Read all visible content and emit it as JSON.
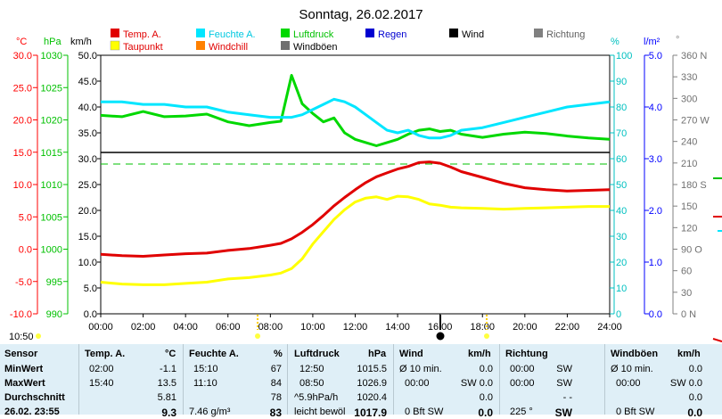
{
  "title": "Sonntag, 26.02.2017",
  "time_marker": "10:50",
  "legend": [
    {
      "label": "Temp. A.",
      "color": "#e00000"
    },
    {
      "label": "Feuchte A.",
      "color": "#00e6ff"
    },
    {
      "label": "Luftdruck",
      "color": "#00d800"
    },
    {
      "label": "Regen",
      "color": "#0000d0"
    },
    {
      "label": "Wind",
      "color": "#000000"
    },
    {
      "label": "Richtung",
      "color": "#808080"
    },
    {
      "label": "Taupunkt",
      "color": "#ffff00"
    },
    {
      "label": "Windchill",
      "color": "#ff8000"
    },
    {
      "label": "Windböen",
      "color": "#707070"
    }
  ],
  "axis_units": {
    "temp": "°C",
    "pressure": "hPa",
    "wind": "km/h",
    "humidity": "%",
    "rain": "l/m²",
    "direction": "°"
  },
  "colors": {
    "temp": "#e00000",
    "dew": "#ffff00",
    "humidity": "#00e6ff",
    "pressure": "#00d800",
    "axis_temp": "#ff0000",
    "axis_pressure": "#00c000",
    "axis_humidity": "#00c0c0",
    "axis_rain": "#0000ff"
  },
  "chart_data": {
    "type": "line",
    "title": "Sonntag, 26.02.2017",
    "x_ticks": [
      "00:00",
      "02:00",
      "04:00",
      "06:00",
      "08:00",
      "10:00",
      "12:00",
      "14:00",
      "16:00",
      "18:00",
      "20:00",
      "22:00",
      "24:00"
    ],
    "axes": {
      "temp": {
        "label": "°C",
        "min": -10,
        "max": 30,
        "ticks": [
          "30.0",
          "25.0",
          "20.0",
          "15.0",
          "10.0",
          "5.0",
          "0.0",
          "-5.0",
          "-10.0"
        ]
      },
      "pressure": {
        "label": "hPa",
        "min": 990,
        "max": 1030,
        "ticks": [
          "1030",
          "1025",
          "1020",
          "1015",
          "1010",
          "1005",
          "1000",
          "995",
          "990"
        ]
      },
      "wind": {
        "label": "km/h",
        "ticks": [
          "50.0",
          "45.0",
          "40.0",
          "35.0",
          "30.0",
          "25.0",
          "20.0",
          "15.0",
          "10.0",
          "5.0",
          "0.0"
        ]
      },
      "humidity": {
        "label": "%",
        "min": 0,
        "max": 100,
        "ticks": [
          "100",
          "90",
          "80",
          "70",
          "60",
          "50",
          "40",
          "30",
          "20",
          "10",
          "0"
        ]
      },
      "rain": {
        "label": "l/m²",
        "ticks": [
          "5.0",
          "4.0",
          "3.0",
          "2.0",
          "1.0",
          "0.0"
        ]
      },
      "direction": {
        "label": "°",
        "ticks": [
          "360 N",
          "330",
          "300",
          "270 W",
          "240",
          "210",
          "180 S",
          "150",
          "120",
          "90 O",
          "60",
          "30",
          "0 N"
        ]
      }
    },
    "series": [
      {
        "name": "Temp. A.",
        "axis": "temp",
        "x": [
          0,
          1,
          2,
          3,
          4,
          5,
          6,
          7,
          8,
          8.5,
          9,
          9.5,
          10,
          10.5,
          11,
          11.5,
          12,
          12.5,
          13,
          13.5,
          14,
          14.5,
          15,
          15.5,
          16,
          16.5,
          17,
          18,
          19,
          20,
          21,
          22,
          23,
          24
        ],
        "values": [
          -0.8,
          -1.0,
          -1.1,
          -0.9,
          -0.7,
          -0.6,
          -0.2,
          0.1,
          0.6,
          0.9,
          1.6,
          2.6,
          3.8,
          5.2,
          6.7,
          8.0,
          9.2,
          10.3,
          11.2,
          11.8,
          12.4,
          12.8,
          13.4,
          13.5,
          13.3,
          12.7,
          12.0,
          11.1,
          10.2,
          9.5,
          9.2,
          9.0,
          9.1,
          9.2
        ]
      },
      {
        "name": "Taupunkt",
        "axis": "temp",
        "x": [
          0,
          1,
          2,
          3,
          4,
          5,
          6,
          7,
          8,
          8.5,
          9,
          9.5,
          10,
          10.5,
          11,
          11.5,
          12,
          12.5,
          13,
          13.5,
          14,
          14.5,
          15,
          15.5,
          16,
          16.5,
          17,
          18,
          19,
          20,
          21,
          22,
          23,
          24
        ],
        "values": [
          -5.1,
          -5.4,
          -5.5,
          -5.5,
          -5.3,
          -5.1,
          -4.6,
          -4.4,
          -4.0,
          -3.7,
          -3.0,
          -1.5,
          0.8,
          2.7,
          4.6,
          6.1,
          7.3,
          7.9,
          8.1,
          7.7,
          8.2,
          8.1,
          7.7,
          7.0,
          6.8,
          6.5,
          6.4,
          6.3,
          6.2,
          6.3,
          6.4,
          6.5,
          6.6,
          6.6
        ]
      },
      {
        "name": "Feuchte A.",
        "axis": "humidity",
        "x": [
          0,
          1,
          2,
          3,
          4,
          5,
          6,
          7,
          8,
          8.5,
          9,
          9.5,
          10,
          10.5,
          11,
          11.5,
          12,
          12.5,
          13,
          13.5,
          14,
          14.5,
          15,
          15.5,
          16,
          16.5,
          17,
          18,
          19,
          20,
          21,
          22,
          23,
          24
        ],
        "values": [
          82,
          82,
          81,
          81,
          80,
          80,
          78,
          77,
          76,
          76,
          76,
          77,
          79,
          81,
          83,
          82,
          80,
          77,
          74,
          71,
          70,
          71,
          69,
          68,
          68,
          69,
          71,
          72,
          74,
          76,
          78,
          80,
          81,
          82
        ]
      },
      {
        "name": "Luftdruck",
        "axis": "pressure",
        "x": [
          0,
          1,
          2,
          3,
          4,
          5,
          6,
          7,
          8,
          8.5,
          9,
          9.5,
          10,
          10.5,
          11,
          11.5,
          12,
          12.5,
          13,
          13.5,
          14,
          14.5,
          15,
          15.5,
          16,
          16.5,
          17,
          18,
          19,
          20,
          21,
          22,
          23,
          24
        ],
        "values": [
          1020.7,
          1020.5,
          1021.3,
          1020.5,
          1020.6,
          1020.9,
          1019.7,
          1019.1,
          1019.6,
          1019.8,
          1026.9,
          1022.5,
          1021.0,
          1019.7,
          1020.3,
          1018.0,
          1017.0,
          1016.5,
          1016.0,
          1016.5,
          1017.0,
          1017.8,
          1018.4,
          1018.6,
          1018.2,
          1018.4,
          1017.8,
          1017.3,
          1017.8,
          1018.1,
          1017.9,
          1017.5,
          1017.2,
          1017.0
        ]
      }
    ]
  },
  "table": {
    "col_sensor": {
      "header": "Sensor",
      "rows": [
        "MinWert",
        "MaxWert",
        "Durchschnitt",
        "26.02. 23:55"
      ]
    },
    "col_temp": {
      "header": "Temp. A.",
      "unit": "°C",
      "times": [
        "02:00",
        "15:40",
        "",
        ""
      ],
      "values": [
        "-1.1",
        "13.5",
        "5.81",
        "9.3"
      ]
    },
    "col_hum": {
      "header": "Feuchte A.",
      "unit": "%",
      "times": [
        "15:10",
        "11:10",
        "",
        "7.46 g/m³"
      ],
      "values": [
        "67",
        "84",
        "78",
        "83"
      ]
    },
    "col_press": {
      "header": "Luftdruck",
      "unit": "hPa",
      "times": [
        "12:50",
        "08:50",
        "^5.9hPa/h",
        "leicht bewöl"
      ],
      "values": [
        "1015.5",
        "1026.9",
        "1020.4",
        "1017.9"
      ]
    },
    "col_wind": {
      "header": "Wind",
      "unit": "km/h",
      "times": [
        "Ø 10 min.",
        "00:00",
        "",
        "0 Bft SW"
      ],
      "values": [
        "0.0",
        "SW 0.0",
        "0.0",
        "0.0"
      ]
    },
    "col_dir": {
      "header": "Richtung",
      "times": [
        "00:00",
        "00:00",
        "",
        "225 °"
      ],
      "values": [
        "SW",
        "SW",
        "- -",
        "SW"
      ]
    },
    "col_gust": {
      "header": "Windböen",
      "unit": "km/h",
      "times": [
        "Ø 10 min.",
        "00:00",
        "",
        "0 Bft SW"
      ],
      "values": [
        "0.0",
        "SW 0.0",
        "0.0",
        "0.0"
      ]
    }
  }
}
